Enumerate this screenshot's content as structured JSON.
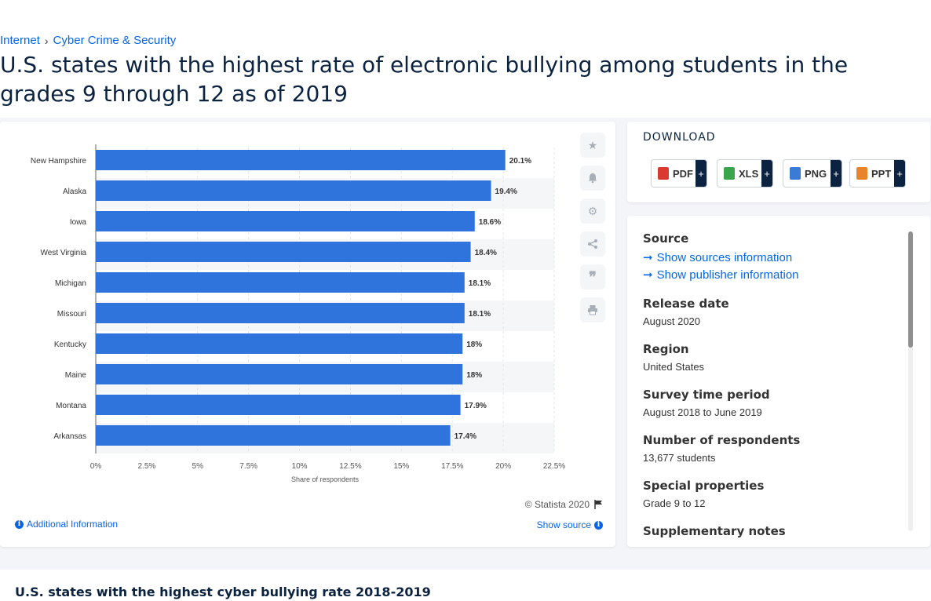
{
  "breadcrumb": {
    "items": [
      "Internet",
      "Cyber Crime & Security"
    ],
    "separator": "›"
  },
  "page_title": "U.S. states with the highest rate of electronic bullying among students in the grades 9 through 12 as of 2019",
  "chart_data": {
    "type": "bar",
    "orientation": "horizontal",
    "categories": [
      "New Hampshire",
      "Alaska",
      "Iowa",
      "West Virginia",
      "Michigan",
      "Missouri",
      "Kentucky",
      "Maine",
      "Montana",
      "Arkansas"
    ],
    "values": [
      20.1,
      19.4,
      18.6,
      18.4,
      18.1,
      18.1,
      18,
      18,
      17.9,
      17.4
    ],
    "value_labels": [
      "20.1%",
      "19.4%",
      "18.6%",
      "18.4%",
      "18.1%",
      "18.1%",
      "18%",
      "18%",
      "17.9%",
      "17.4%"
    ],
    "xlabel": "Share of respondents",
    "ylabel": "",
    "xlim": [
      0,
      22.5
    ],
    "x_ticks": [
      0,
      2.5,
      5,
      7.5,
      10,
      12.5,
      15,
      17.5,
      20,
      22.5
    ],
    "x_tick_labels": [
      "0%",
      "2.5%",
      "5%",
      "7.5%",
      "10%",
      "12.5%",
      "15%",
      "17.5%",
      "20%",
      "22.5%"
    ],
    "grid": true,
    "bar_color": "#2f74dc"
  },
  "chart_footer": {
    "copyright": "© Statista 2020",
    "show_source": "Show source",
    "additional_info": "Additional Information"
  },
  "toolbar_icons": [
    "star-icon",
    "bell-icon",
    "gear-icon",
    "share-icon",
    "quote-icon",
    "print-icon"
  ],
  "download": {
    "title": "DOWNLOAD",
    "buttons": [
      {
        "label": "PDF",
        "color": "#d93a30"
      },
      {
        "label": "XLS",
        "color": "#3aa54a"
      },
      {
        "label": "PNG",
        "color": "#3a7bd5"
      },
      {
        "label": "PPT",
        "color": "#e8852a"
      }
    ],
    "plus": "+"
  },
  "meta": {
    "source_label": "Source",
    "show_sources": "Show sources information",
    "show_publisher": "Show publisher information",
    "release_date_label": "Release date",
    "release_date": "August 2020",
    "region_label": "Region",
    "region": "United States",
    "survey_period_label": "Survey time period",
    "survey_period": "August 2018 to June 2019",
    "respondents_label": "Number of respondents",
    "respondents": "13,677 students",
    "special_label": "Special properties",
    "special": "Grade 9 to 12",
    "supplementary_label": "Supplementary notes"
  },
  "related": {
    "title": "U.S. states with the highest cyber bullying rate 2018-2019"
  },
  "accent_color": "#0666e5"
}
